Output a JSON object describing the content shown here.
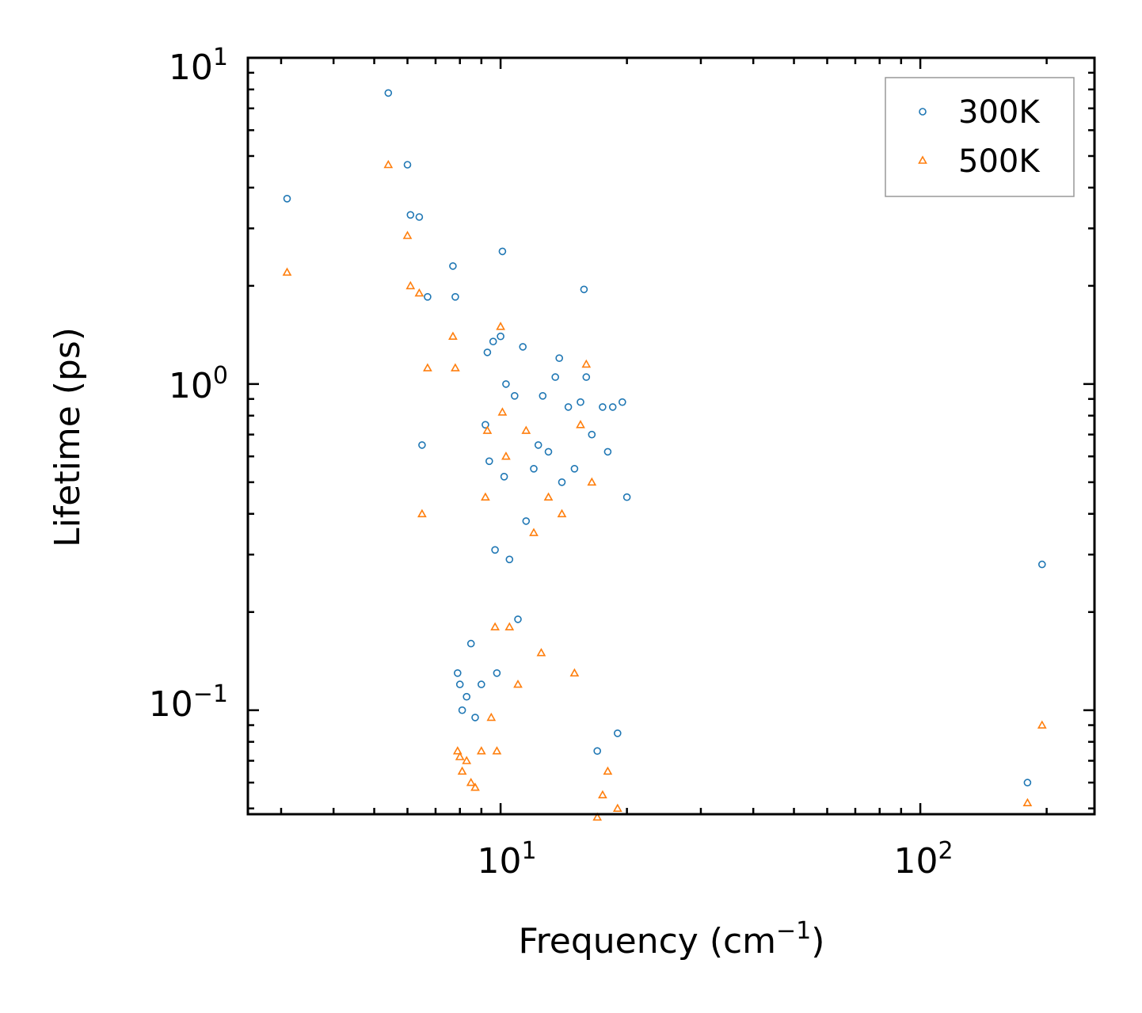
{
  "chart_data": {
    "type": "scatter",
    "xscale": "log",
    "yscale": "log",
    "xlabel": "Frequency (cm",
    "xlabel_sup": "−1",
    "xlabel_close": ")",
    "ylabel": "Lifetime (ps)",
    "xlim": [
      2.5,
      260
    ],
    "ylim": [
      0.048,
      10
    ],
    "x_ticks": [
      {
        "base": "10",
        "exp": "1"
      },
      {
        "base": "10",
        "exp": "2"
      }
    ],
    "y_ticks": [
      {
        "base": "10",
        "exp": "1"
      },
      {
        "base": "10",
        "exp": "0"
      },
      {
        "base": "10",
        "exp": "−1"
      }
    ],
    "legend_position": "top-right",
    "series": [
      {
        "name": "300K",
        "marker": "circle",
        "color": "#1f77b4",
        "points": [
          [
            3.1,
            3.7
          ],
          [
            5.4,
            7.8
          ],
          [
            6.0,
            4.7
          ],
          [
            6.1,
            3.3
          ],
          [
            6.4,
            3.25
          ],
          [
            6.5,
            0.65
          ],
          [
            6.7,
            1.85
          ],
          [
            7.7,
            2.3
          ],
          [
            7.8,
            1.85
          ],
          [
            7.9,
            0.13
          ],
          [
            8.0,
            0.12
          ],
          [
            8.1,
            0.1
          ],
          [
            8.3,
            0.11
          ],
          [
            8.5,
            0.16
          ],
          [
            8.7,
            0.095
          ],
          [
            9.0,
            0.12
          ],
          [
            9.2,
            0.75
          ],
          [
            9.3,
            1.25
          ],
          [
            9.4,
            0.58
          ],
          [
            9.6,
            1.35
          ],
          [
            9.7,
            0.31
          ],
          [
            9.8,
            0.13
          ],
          [
            10.0,
            1.4
          ],
          [
            10.1,
            2.55
          ],
          [
            10.2,
            0.52
          ],
          [
            10.3,
            1.0
          ],
          [
            10.5,
            0.29
          ],
          [
            10.8,
            0.92
          ],
          [
            11.0,
            0.19
          ],
          [
            11.3,
            1.3
          ],
          [
            11.5,
            0.38
          ],
          [
            12.0,
            0.55
          ],
          [
            12.3,
            0.65
          ],
          [
            12.6,
            0.92
          ],
          [
            13.0,
            0.62
          ],
          [
            13.5,
            1.05
          ],
          [
            13.8,
            1.2
          ],
          [
            14.0,
            0.5
          ],
          [
            14.5,
            0.85
          ],
          [
            15.0,
            0.55
          ],
          [
            15.5,
            0.88
          ],
          [
            15.8,
            1.95
          ],
          [
            16.0,
            1.05
          ],
          [
            16.5,
            0.7
          ],
          [
            17.0,
            0.075
          ],
          [
            17.5,
            0.85
          ],
          [
            18.0,
            0.62
          ],
          [
            18.5,
            0.85
          ],
          [
            19.0,
            0.085
          ],
          [
            19.5,
            0.88
          ],
          [
            20.0,
            0.45
          ],
          [
            180,
            0.06
          ],
          [
            195,
            0.28
          ]
        ]
      },
      {
        "name": "500K",
        "marker": "triangle",
        "color": "#ff7f0e",
        "points": [
          [
            3.1,
            2.2
          ],
          [
            5.4,
            4.7
          ],
          [
            6.0,
            2.85
          ],
          [
            6.1,
            2.0
          ],
          [
            6.4,
            1.9
          ],
          [
            6.5,
            0.4
          ],
          [
            6.7,
            1.12
          ],
          [
            7.7,
            1.4
          ],
          [
            7.8,
            1.12
          ],
          [
            7.9,
            0.075
          ],
          [
            8.0,
            0.072
          ],
          [
            8.1,
            0.065
          ],
          [
            8.3,
            0.07
          ],
          [
            8.5,
            0.06
          ],
          [
            8.7,
            0.058
          ],
          [
            9.0,
            0.075
          ],
          [
            9.2,
            0.45
          ],
          [
            9.3,
            0.72
          ],
          [
            9.5,
            0.095
          ],
          [
            9.7,
            0.18
          ],
          [
            9.8,
            0.075
          ],
          [
            10.0,
            1.5
          ],
          [
            10.1,
            0.82
          ],
          [
            10.3,
            0.6
          ],
          [
            10.5,
            0.18
          ],
          [
            11.0,
            0.12
          ],
          [
            11.5,
            0.72
          ],
          [
            12.0,
            0.35
          ],
          [
            12.5,
            0.15
          ],
          [
            13.0,
            0.45
          ],
          [
            14.0,
            0.4
          ],
          [
            15.0,
            0.13
          ],
          [
            15.5,
            0.75
          ],
          [
            16.0,
            1.15
          ],
          [
            16.5,
            0.5
          ],
          [
            17.0,
            0.047
          ],
          [
            17.5,
            0.055
          ],
          [
            18.0,
            0.065
          ],
          [
            19.0,
            0.05
          ],
          [
            180,
            0.052
          ],
          [
            195,
            0.09
          ]
        ]
      }
    ]
  }
}
